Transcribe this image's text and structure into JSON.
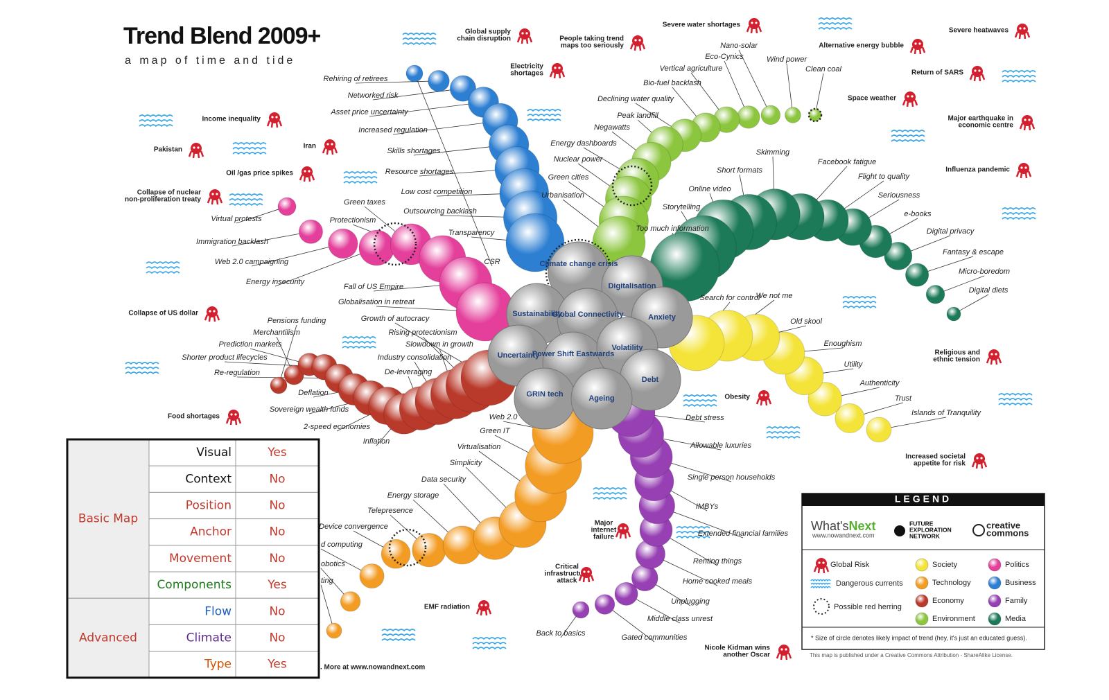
{
  "header": {
    "title": "Trend Blend 2009+",
    "subtitle": "a map of time and tide"
  },
  "center": {
    "labels": [
      "Climate change crisis",
      "Digitalisation",
      "Sustainability",
      "Global Connectivity",
      "Anxiety",
      "Uncertainty",
      "Power Shift Eastwards",
      "Volatility",
      "Debt",
      "GRIN tech",
      "Ageing"
    ]
  },
  "categories": [
    {
      "name": "Society",
      "color": "#f4e43a",
      "trends": [
        "Search for control",
        "We not me",
        "Old skool",
        "Enoughism",
        "Utility",
        "Authenticity",
        "Trust",
        "Islands of Tranquility"
      ]
    },
    {
      "name": "Technology",
      "color": "#f39c24",
      "trends": [
        "Web 2.0",
        "Green IT",
        "Virtualisation",
        "Simplicity",
        "Data security",
        "Energy storage",
        "Telepresence",
        "Device convergence",
        "d computing",
        "obotics",
        "ting"
      ]
    },
    {
      "name": "Economy",
      "color": "#b93a2b",
      "trends": [
        "Growth of autocracy",
        "Rising protectionism",
        "Slowdown in growth",
        "Industry consolidation",
        "De-leveraging",
        "Inflation",
        "2-speed economies",
        "Sovereign wealth funds",
        "Deflation",
        "Re-regulation",
        "Shorter product lifecycles",
        "Prediction markets",
        "Merchantilism",
        "Pensions funding"
      ]
    },
    {
      "name": "Environment",
      "color": "#8cc63f",
      "trends": [
        "Urbanisation",
        "Green cities",
        "Nuclear power",
        "Energy dashboards",
        "Negawatts",
        "Peak landfill",
        "Declining water quality",
        "Bio-fuel backlash",
        "Vertical agriculture",
        "Eco-Cynics",
        "Nano-solar",
        "Wind power",
        "Clean coal"
      ]
    },
    {
      "name": "Politics",
      "color": "#e43f9b",
      "trends": [
        "Globalisation in retreat",
        "Fall of US Empire",
        "Protectionism",
        "Green taxes",
        "Energy insecurity",
        "Web 2.0 campaigning",
        "Immigration backlash",
        "Virtual protests"
      ]
    },
    {
      "name": "Business",
      "color": "#2d7fd2",
      "trends": [
        "Transparency",
        "Outsourcing backlash",
        "Low cost competition",
        "Resource shortages",
        "Skills shortages",
        "Increased regulation",
        "Asset price uncertainty",
        "Networked risk",
        "Rehiring of retirees",
        "CSR"
      ]
    },
    {
      "name": "Family",
      "color": "#9640b3",
      "trends": [
        "Debt stress",
        "Allowable luxuries",
        "Single person households",
        "IMBYs",
        "Extended financial families",
        "Renting things",
        "Home cooked meals",
        "Unplugging",
        "Middle class unrest",
        "Gated communities",
        "Back to basics"
      ]
    },
    {
      "name": "Media",
      "color": "#1c7a58",
      "trends": [
        "Too much information",
        "Storytelling",
        "Online video",
        "Short formats",
        "Skimming",
        "Facebook fatigue",
        "Flight to quality",
        "Seriousness",
        "e-books",
        "Digital privacy",
        "Fantasy & escape",
        "Micro-boredom",
        "Digital diets"
      ]
    }
  ],
  "risks": [
    {
      "lines": [
        "Global supply",
        "chain disruption"
      ]
    },
    {
      "lines": [
        "People taking trend",
        "maps too seriously"
      ]
    },
    {
      "lines": [
        "Severe water shortages"
      ]
    },
    {
      "lines": [
        "Severe heatwaves"
      ]
    },
    {
      "lines": [
        "Electricity",
        "shortages"
      ]
    },
    {
      "lines": [
        "Alternative energy bubble"
      ]
    },
    {
      "lines": [
        "Return of SARS"
      ]
    },
    {
      "lines": [
        "Space weather"
      ]
    },
    {
      "lines": [
        "Major earthquake in",
        "economic centre"
      ]
    },
    {
      "lines": [
        "Income inequality"
      ]
    },
    {
      "lines": [
        "Pakistan"
      ]
    },
    {
      "lines": [
        "Iran"
      ]
    },
    {
      "lines": [
        "Oil /gas price spikes"
      ]
    },
    {
      "lines": [
        "Collapse of nuclear",
        "non-proliferation treaty"
      ]
    },
    {
      "lines": [
        "Influenza pandemic"
      ]
    },
    {
      "lines": [
        "Collapse of US dollar"
      ]
    },
    {
      "lines": [
        "Religious and",
        "ethnic tension"
      ]
    },
    {
      "lines": [
        "Obesity"
      ]
    },
    {
      "lines": [
        "Food shortages"
      ]
    },
    {
      "lines": [
        "Increased societal",
        "appetite for risk"
      ]
    },
    {
      "lines": [
        "Major",
        "internet",
        "failure"
      ]
    },
    {
      "lines": [
        "Critical",
        "infrastructure",
        "attack"
      ]
    },
    {
      "lines": [
        "EMF radiation"
      ]
    },
    {
      "lines": [
        "Nicole Kidman wins",
        "another Oscar"
      ]
    }
  ],
  "legend": {
    "title": "LEGEND",
    "brand": "What's",
    "brand_accent": "Next",
    "brand_url": "www.nowandnext.com",
    "network": [
      "FUTURE",
      "EXPLORATION",
      "NETWORK"
    ],
    "cc": [
      "creative",
      "commons"
    ],
    "global_risk": "Global Risk",
    "dangerous_currents": "Dangerous currents",
    "red_herring": "Possible red herring",
    "note": "* Size of circle denotes likely impact of trend (hey, it's just an educated guess).",
    "license": "This map is published under a Creative Commons Attribution - ShareAlike License."
  },
  "footer": ". More at www.nowandnext.com",
  "table": {
    "groups": [
      {
        "name": "Basic Map",
        "rows": [
          {
            "label": "Visual",
            "value": "Yes",
            "color": "#111111"
          },
          {
            "label": "Context",
            "value": "No",
            "color": "#111111"
          },
          {
            "label": "Position",
            "value": "No",
            "color": "#c0392b"
          },
          {
            "label": "Anchor",
            "value": "No",
            "color": "#c0392b"
          },
          {
            "label": "Movement",
            "value": "No",
            "color": "#c0392b"
          },
          {
            "label": "Components",
            "value": "Yes",
            "color": "#1e7b1e"
          }
        ]
      },
      {
        "name": "Advanced",
        "rows": [
          {
            "label": "Flow",
            "value": "No",
            "color": "#1f5fbf"
          },
          {
            "label": "Climate",
            "value": "No",
            "color": "#5b2a86"
          },
          {
            "label": "Type",
            "value": "Yes",
            "color": "#d35400"
          }
        ]
      }
    ]
  }
}
